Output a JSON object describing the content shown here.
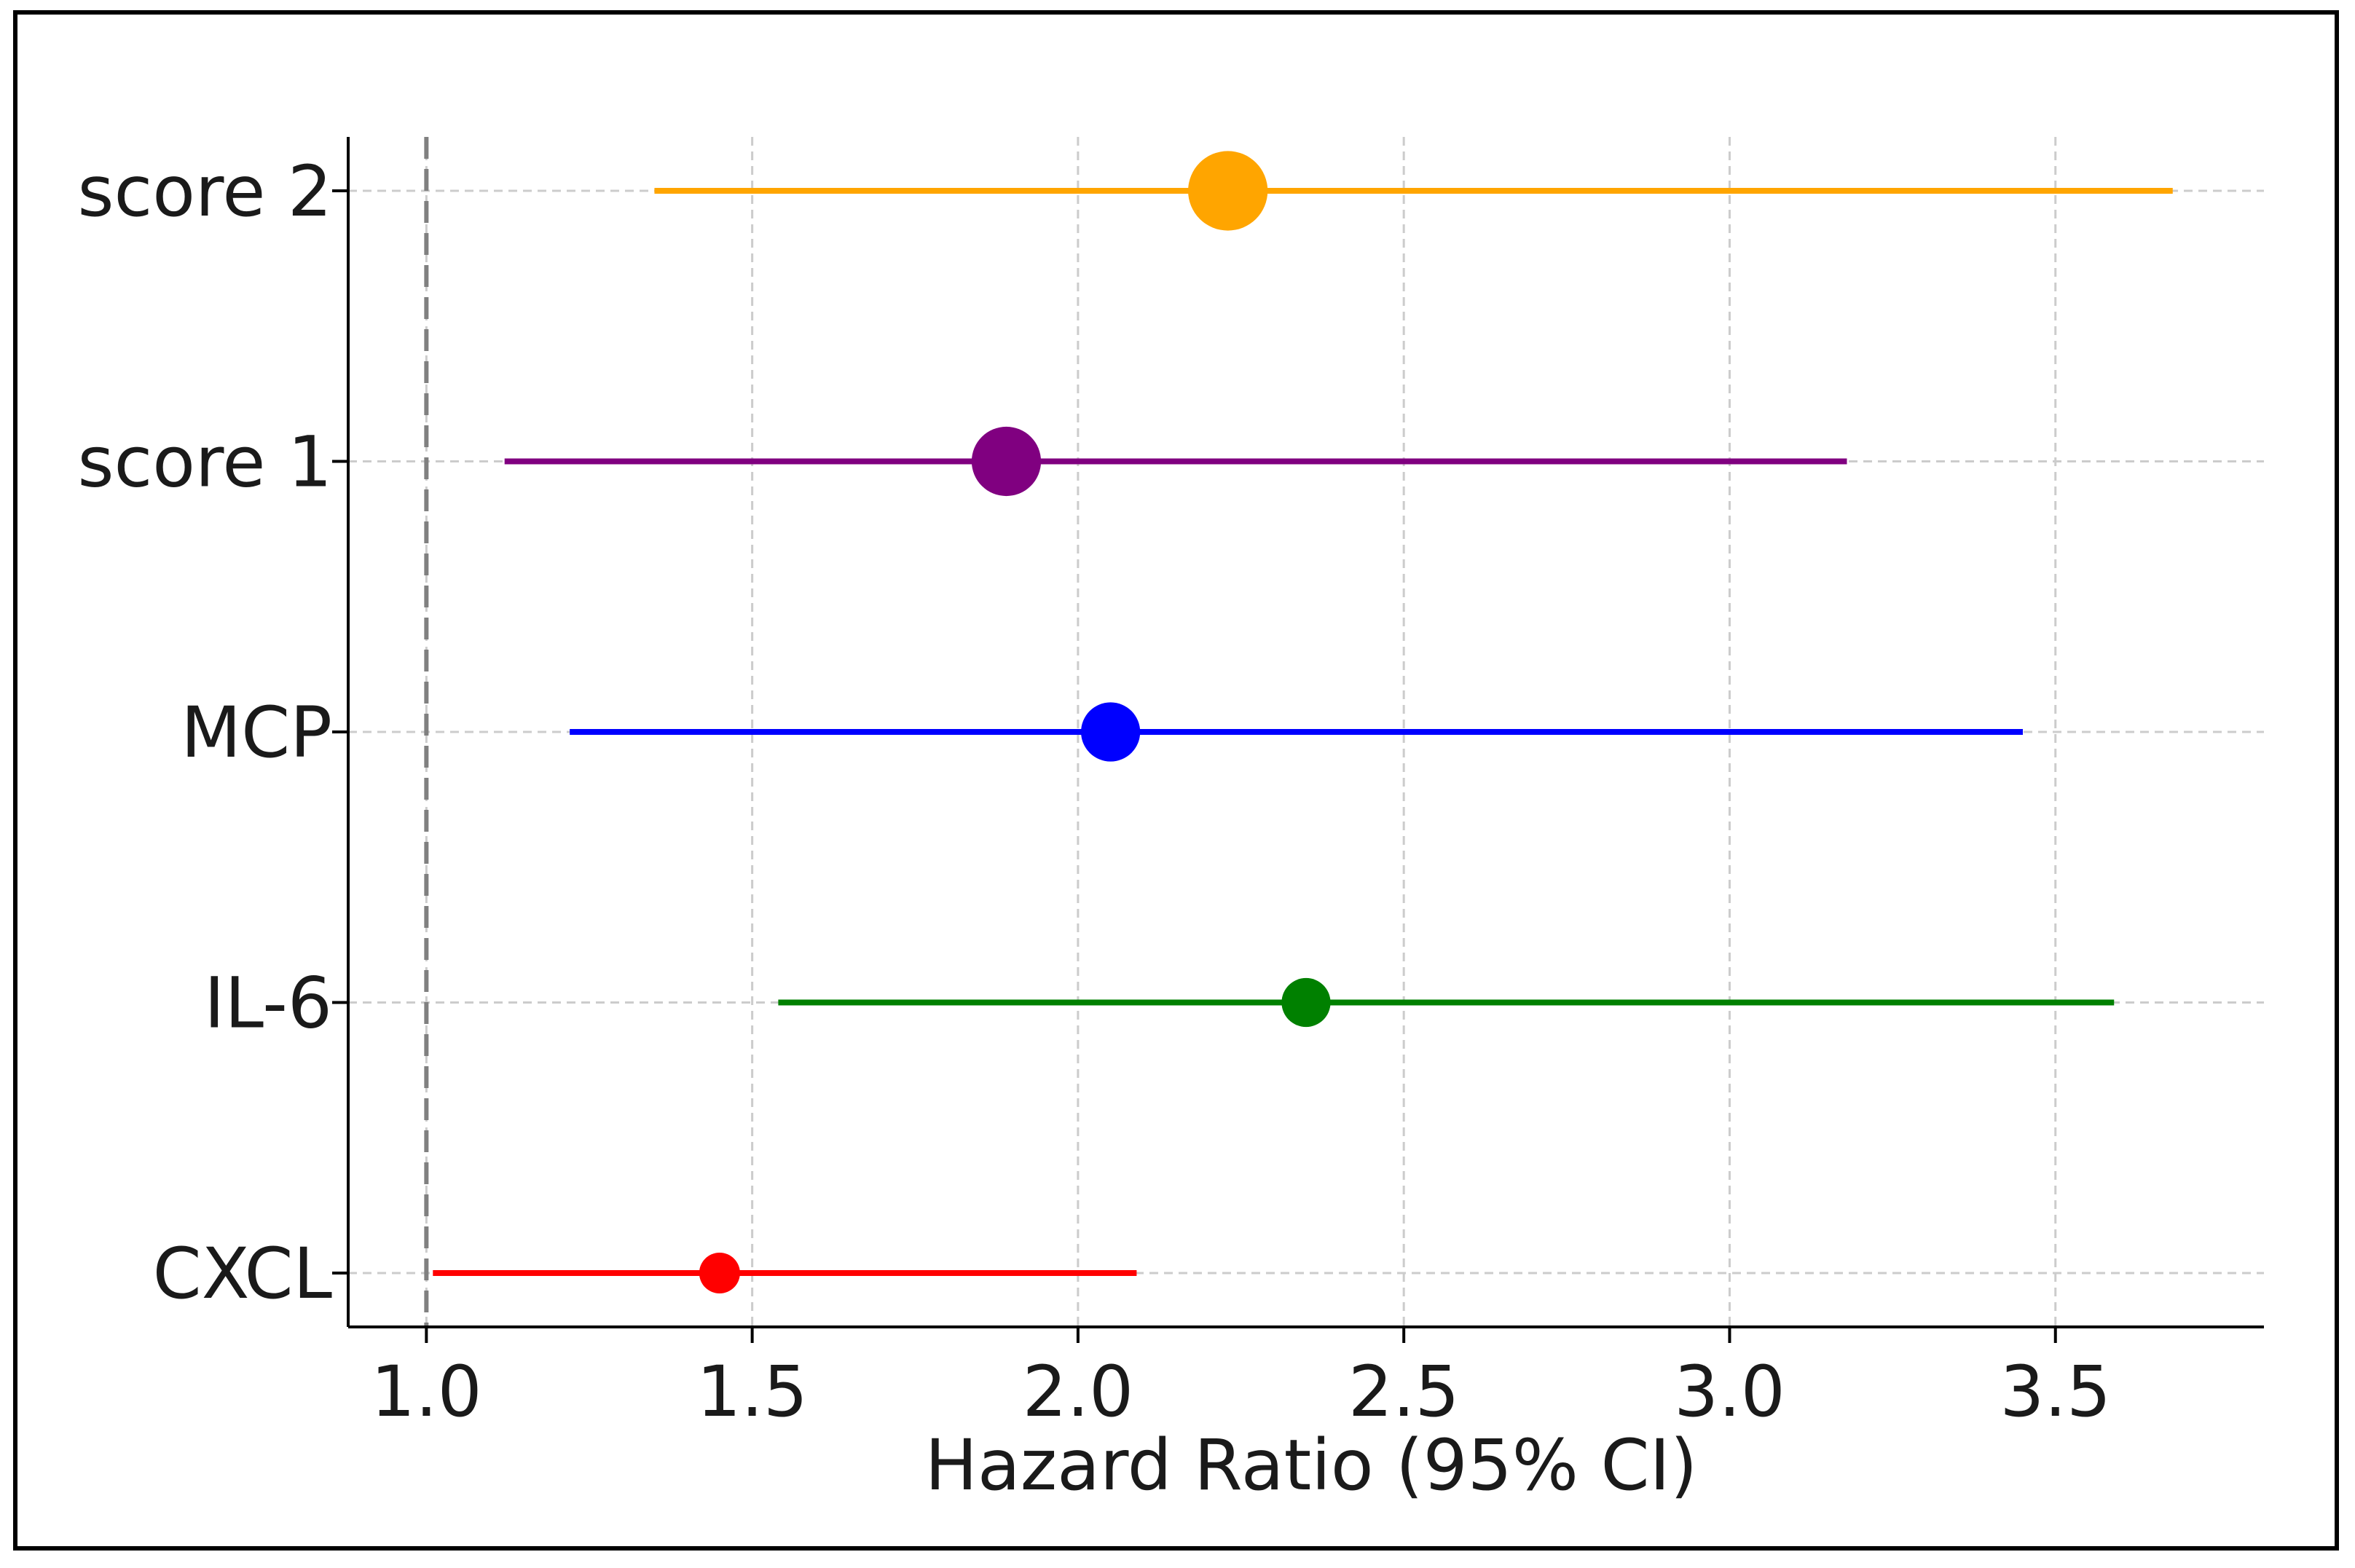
{
  "chart_data": {
    "type": "forest",
    "title": "",
    "xlabel": "Hazard Ratio (95% CI)",
    "ylabel": "",
    "xlim": [
      0.88,
      3.82
    ],
    "xticks": [
      1.0,
      1.5,
      2.0,
      2.5,
      3.0,
      3.5
    ],
    "xtick_labels": [
      "1.0",
      "1.5",
      "2.0",
      "2.5",
      "3.0",
      "3.5"
    ],
    "grid": true,
    "reference_line": 1.0,
    "reference_line_color": "#808080",
    "categories": [
      "CXCL",
      "IL-6",
      "MCP",
      "score 1",
      "score 2"
    ],
    "series": [
      {
        "label": "CXCL",
        "hr": 1.45,
        "ci_low": 1.01,
        "ci_high": 2.09,
        "color": "#ff0000",
        "marker_weight": 1.0
      },
      {
        "label": "IL-6",
        "hr": 2.35,
        "ci_low": 1.54,
        "ci_high": 3.59,
        "color": "#008000",
        "marker_weight": 1.2
      },
      {
        "label": "MCP",
        "hr": 2.05,
        "ci_low": 1.22,
        "ci_high": 3.45,
        "color": "#0000ff",
        "marker_weight": 1.45
      },
      {
        "label": "score 1",
        "hr": 1.89,
        "ci_low": 1.12,
        "ci_high": 3.18,
        "color": "#800080",
        "marker_weight": 1.7
      },
      {
        "label": "score 2",
        "hr": 2.23,
        "ci_low": 1.35,
        "ci_high": 3.68,
        "color": "#ffa500",
        "marker_weight": 1.95
      }
    ]
  }
}
